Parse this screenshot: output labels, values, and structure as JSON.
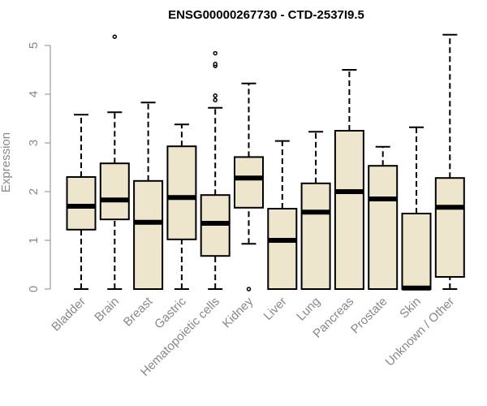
{
  "chart_data": {
    "type": "box",
    "title": "ENSG00000267730 - CTD-2537I9.5",
    "xlabel": "",
    "ylabel": "Expression",
    "ylim": [
      0,
      5.2
    ],
    "yticks": [
      0,
      1,
      2,
      3,
      4,
      5
    ],
    "box_color": "#ede6cc",
    "categories": [
      "Bladder",
      "Brain",
      "Breast",
      "Gastric",
      "Hematopoietic cells",
      "Kidney",
      "Liver",
      "Lung",
      "Pancreas",
      "Prostate",
      "Skin",
      "Unknown / Other"
    ],
    "boxes": [
      {
        "min": 0.0,
        "q1": 1.22,
        "median": 1.7,
        "q3": 2.3,
        "max": 3.58,
        "outliers": []
      },
      {
        "min": 0.0,
        "q1": 1.43,
        "median": 1.83,
        "q3": 2.58,
        "max": 3.63,
        "outliers": [
          5.18
        ]
      },
      {
        "min": 0.0,
        "q1": 0.0,
        "median": 1.37,
        "q3": 2.22,
        "max": 3.83,
        "outliers": []
      },
      {
        "min": 0.0,
        "q1": 1.02,
        "median": 1.88,
        "q3": 2.93,
        "max": 3.38,
        "outliers": []
      },
      {
        "min": 0.0,
        "q1": 0.68,
        "median": 1.35,
        "q3": 1.93,
        "max": 3.72,
        "outliers": [
          3.88,
          3.97,
          4.58,
          4.62,
          4.84
        ]
      },
      {
        "min": 0.93,
        "q1": 1.67,
        "median": 2.28,
        "q3": 2.71,
        "max": 4.22,
        "outliers": [
          0.0
        ]
      },
      {
        "min": 0.0,
        "q1": 0.0,
        "median": 1.0,
        "q3": 1.65,
        "max": 3.04,
        "outliers": []
      },
      {
        "min": 0.0,
        "q1": 0.0,
        "median": 1.58,
        "q3": 2.17,
        "max": 3.23,
        "outliers": []
      },
      {
        "min": 0.0,
        "q1": 0.0,
        "median": 2.0,
        "q3": 3.25,
        "max": 4.5,
        "outliers": []
      },
      {
        "min": 0.0,
        "q1": 0.0,
        "median": 1.85,
        "q3": 2.53,
        "max": 2.92,
        "outliers": []
      },
      {
        "min": 0.0,
        "q1": 0.0,
        "median": 0.02,
        "q3": 1.55,
        "max": 3.32,
        "outliers": []
      },
      {
        "min": 0.0,
        "q1": 0.25,
        "median": 1.68,
        "q3": 2.28,
        "max": 5.22,
        "outliers": []
      }
    ]
  }
}
